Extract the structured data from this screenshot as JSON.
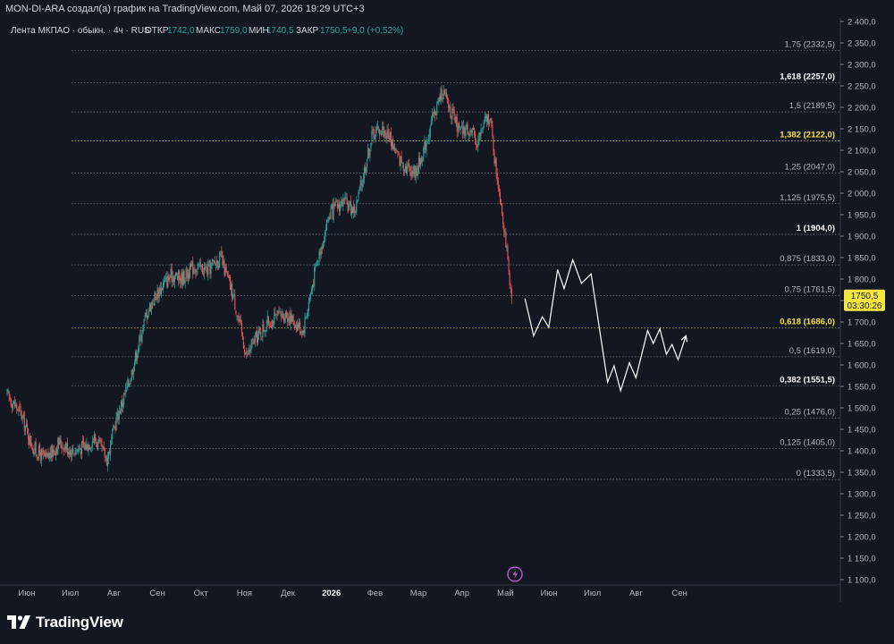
{
  "header": {
    "attribution": "MON-DI-ARA создал(а) график на TradingView.com, Май 07, 2026 19:29 UTC+3"
  },
  "legend": {
    "symbol": "Лента МКПАО · обыкн. · 4ч · RUS",
    "open_label": "ОТКР",
    "open_value": "1742,0",
    "high_label": "МАКС",
    "high_value": "1759,0",
    "low_label": "МИН",
    "low_value": "1740,5",
    "close_label": "ЗАКР",
    "close_value": "1750,5",
    "change_value": "+9,0 (+0,52%)"
  },
  "price_badge": {
    "price": "1750,5",
    "countdown": "03:30:26"
  },
  "footer": {
    "brand": "TradingView"
  },
  "colors": {
    "background": "#131722",
    "up": "#26a69a",
    "down": "#ef5350",
    "fib_line": "#b2b5be",
    "fib_highlight": "#f5e642",
    "projection": "#ffffff",
    "badge": "#f5e642"
  },
  "chart_data": {
    "type": "candlestick",
    "y_axis": {
      "min": 1100,
      "max": 2400,
      "step": 50,
      "ticks": [
        "1 100,0",
        "1 150,0",
        "1 200,0",
        "1 250,0",
        "1 300,0",
        "1 350,0",
        "1 400,0",
        "1 450,0",
        "1 500,0",
        "1 550,0",
        "1 600,0",
        "1 650,0",
        "1 700,0",
        "1 750,0",
        "1 800,0",
        "1 850,0",
        "1 900,0",
        "1 950,0",
        "2 000,0",
        "2 050,0",
        "2 100,0",
        "2 150,0",
        "2 200,0",
        "2 250,0",
        "2 300,0",
        "2 350,0",
        "2 400,0"
      ]
    },
    "x_axis": {
      "labels": [
        "Июн",
        "Июл",
        "Авг",
        "Сен",
        "Окт",
        "Ноя",
        "Дек",
        "2026",
        "Фев",
        "Мар",
        "Апр",
        "Май",
        "Июн",
        "Июл",
        "Авг",
        "Сен"
      ],
      "bold_label": "2026"
    },
    "price_path": [
      {
        "x": 0.0,
        "y": 1530
      },
      {
        "x": 0.3,
        "y": 1490
      },
      {
        "x": 0.6,
        "y": 1405
      },
      {
        "x": 0.9,
        "y": 1380
      },
      {
        "x": 1.2,
        "y": 1420
      },
      {
        "x": 1.5,
        "y": 1400
      },
      {
        "x": 1.8,
        "y": 1410
      },
      {
        "x": 2.0,
        "y": 1430
      },
      {
        "x": 2.3,
        "y": 1380
      },
      {
        "x": 2.5,
        "y": 1470
      },
      {
        "x": 2.8,
        "y": 1560
      },
      {
        "x": 3.0,
        "y": 1640
      },
      {
        "x": 3.2,
        "y": 1720
      },
      {
        "x": 3.4,
        "y": 1760
      },
      {
        "x": 3.6,
        "y": 1790
      },
      {
        "x": 3.8,
        "y": 1810
      },
      {
        "x": 4.0,
        "y": 1800
      },
      {
        "x": 4.3,
        "y": 1830
      },
      {
        "x": 4.6,
        "y": 1820
      },
      {
        "x": 4.9,
        "y": 1850
      },
      {
        "x": 5.2,
        "y": 1760
      },
      {
        "x": 5.5,
        "y": 1620
      },
      {
        "x": 5.7,
        "y": 1660
      },
      {
        "x": 6.0,
        "y": 1700
      },
      {
        "x": 6.4,
        "y": 1720
      },
      {
        "x": 6.8,
        "y": 1680
      },
      {
        "x": 7.1,
        "y": 1830
      },
      {
        "x": 7.4,
        "y": 1950
      },
      {
        "x": 7.7,
        "y": 1980
      },
      {
        "x": 8.0,
        "y": 1960
      },
      {
        "x": 8.2,
        "y": 2050
      },
      {
        "x": 8.4,
        "y": 2140
      },
      {
        "x": 8.6,
        "y": 2150
      },
      {
        "x": 8.8,
        "y": 2130
      },
      {
        "x": 9.0,
        "y": 2080
      },
      {
        "x": 9.2,
        "y": 2060
      },
      {
        "x": 9.4,
        "y": 2050
      },
      {
        "x": 9.6,
        "y": 2110
      },
      {
        "x": 9.8,
        "y": 2180
      },
      {
        "x": 10.0,
        "y": 2240
      },
      {
        "x": 10.2,
        "y": 2190
      },
      {
        "x": 10.4,
        "y": 2140
      },
      {
        "x": 10.6,
        "y": 2150
      },
      {
        "x": 10.8,
        "y": 2120
      },
      {
        "x": 11.0,
        "y": 2170
      },
      {
        "x": 11.1,
        "y": 2180
      },
      {
        "x": 11.2,
        "y": 2080
      },
      {
        "x": 11.35,
        "y": 1980
      },
      {
        "x": 11.45,
        "y": 1900
      },
      {
        "x": 11.55,
        "y": 1780
      },
      {
        "x": 11.6,
        "y": 1742
      }
    ],
    "fibonacci_levels": [
      {
        "ratio": "1,75",
        "price": 2332.5,
        "label": "1,75 (2332,5)",
        "style": "normal"
      },
      {
        "ratio": "1,618",
        "price": 2257.0,
        "label": "1,618 (2257,0)",
        "style": "bold"
      },
      {
        "ratio": "1,5",
        "price": 2189.5,
        "label": "1,5 (2189,5)",
        "style": "normal"
      },
      {
        "ratio": "1,382",
        "price": 2122.0,
        "label": "1,382 (2122,0)",
        "style": "highlight"
      },
      {
        "ratio": "1,25",
        "price": 2047.0,
        "label": "1,25 (2047,0)",
        "style": "normal"
      },
      {
        "ratio": "1,125",
        "price": 1975.5,
        "label": "1,125 (1975,5)",
        "style": "normal"
      },
      {
        "ratio": "1",
        "price": 1904.0,
        "label": "1 (1904,0)",
        "style": "bold"
      },
      {
        "ratio": "0,875",
        "price": 1833.0,
        "label": "0,875 (1833,0)",
        "style": "normal"
      },
      {
        "ratio": "0,75",
        "price": 1761.5,
        "label": "0,75 (1761,5)",
        "style": "normal"
      },
      {
        "ratio": "0,618",
        "price": 1686.0,
        "label": "0,618 (1686,0)",
        "style": "highlight"
      },
      {
        "ratio": "0,5",
        "price": 1619.0,
        "label": "0,5 (1619,0)",
        "style": "normal"
      },
      {
        "ratio": "0,382",
        "price": 1551.5,
        "label": "0,382 (1551,5)",
        "style": "bold"
      },
      {
        "ratio": "0,25",
        "price": 1476.0,
        "label": "0,25 (1476,0)",
        "style": "normal"
      },
      {
        "ratio": "0,125",
        "price": 1405.0,
        "label": "0,125 (1405,0)",
        "style": "normal"
      },
      {
        "ratio": "0",
        "price": 1333.5,
        "label": "0 (1333,5)",
        "style": "normal"
      }
    ],
    "projection_path": [
      {
        "x": 11.9,
        "y": 1755
      },
      {
        "x": 12.1,
        "y": 1668
      },
      {
        "x": 12.3,
        "y": 1712
      },
      {
        "x": 12.45,
        "y": 1688
      },
      {
        "x": 12.65,
        "y": 1822
      },
      {
        "x": 12.8,
        "y": 1778
      },
      {
        "x": 13.0,
        "y": 1845
      },
      {
        "x": 13.2,
        "y": 1790
      },
      {
        "x": 13.42,
        "y": 1812
      },
      {
        "x": 13.8,
        "y": 1560
      },
      {
        "x": 13.95,
        "y": 1598
      },
      {
        "x": 14.1,
        "y": 1540
      },
      {
        "x": 14.3,
        "y": 1605
      },
      {
        "x": 14.45,
        "y": 1570
      },
      {
        "x": 14.72,
        "y": 1680
      },
      {
        "x": 14.85,
        "y": 1650
      },
      {
        "x": 15.0,
        "y": 1684
      },
      {
        "x": 15.15,
        "y": 1625
      },
      {
        "x": 15.28,
        "y": 1648
      },
      {
        "x": 15.42,
        "y": 1612
      },
      {
        "x": 15.6,
        "y": 1668
      }
    ]
  }
}
